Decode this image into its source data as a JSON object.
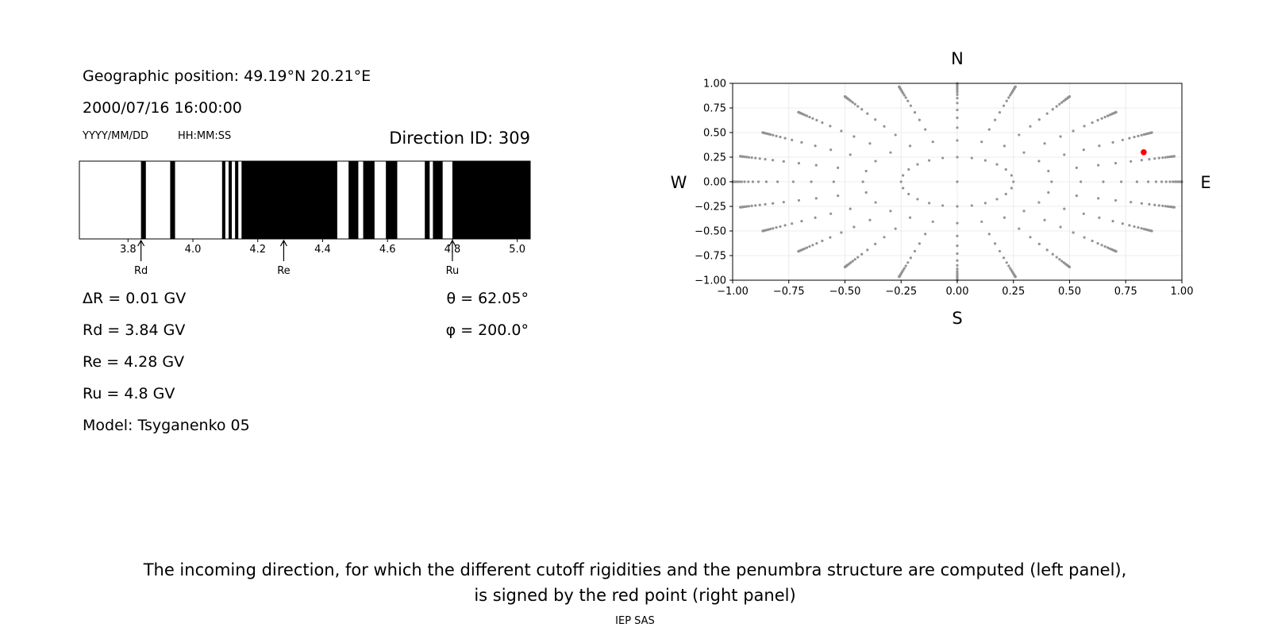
{
  "header": {
    "geo_position": "Geographic position: 49.19°N 20.21°E",
    "datetime": "2000/07/16 16:00:00",
    "date_format": "YYYY/MM/DD",
    "time_format": "HH:MM:SS",
    "direction_id": "Direction ID: 309"
  },
  "stats": {
    "delta_r": "ΔR = 0.01 GV",
    "rd": "Rd = 3.84 GV",
    "re": "Re = 4.28 GV",
    "ru": "Ru = 4.8 GV",
    "model": "Model: Tsyganenko 05",
    "theta": "θ = 62.05°",
    "phi": "φ = 200.0°"
  },
  "caption": {
    "line1": "The incoming direction, for which the different cutoff rigidities and the penumbra structure are computed (left panel),",
    "line2": "is signed by the red point (right panel)"
  },
  "footer": "IEP SAS",
  "chart_data": [
    {
      "type": "penumbra-bar",
      "xlim": [
        3.65,
        5.04
      ],
      "xticks": [
        3.8,
        4.0,
        4.2,
        4.4,
        4.6,
        4.8,
        5.0
      ],
      "xtick_labels": [
        "3.8",
        "4.0",
        "4.2",
        "4.4",
        "4.6",
        "4.8",
        "5.0"
      ],
      "forbidden_intervals": [
        [
          3.84,
          3.855
        ],
        [
          3.93,
          3.945
        ],
        [
          4.09,
          4.1
        ],
        [
          4.11,
          4.12
        ],
        [
          4.13,
          4.14
        ],
        [
          4.15,
          4.445
        ],
        [
          4.48,
          4.51
        ],
        [
          4.525,
          4.56
        ],
        [
          4.595,
          4.63
        ],
        [
          4.715,
          4.73
        ],
        [
          4.74,
          4.77
        ],
        [
          4.8,
          5.04
        ]
      ],
      "markers": [
        {
          "label": "Rd",
          "value": 3.84
        },
        {
          "label": "Re",
          "value": 4.28
        },
        {
          "label": "Ru",
          "value": 4.8
        }
      ],
      "colors": {
        "forbidden": "#000000",
        "allowed": "#ffffff"
      }
    },
    {
      "type": "scatter",
      "xlim": [
        -1.0,
        1.0
      ],
      "ylim": [
        -1.0,
        1.0
      ],
      "xticks": [
        -1.0,
        -0.75,
        -0.5,
        -0.25,
        0.0,
        0.25,
        0.5,
        0.75,
        1.0
      ],
      "yticks": [
        -1.0,
        -0.75,
        -0.5,
        -0.25,
        0.0,
        0.25,
        0.5,
        0.75,
        1.0
      ],
      "xtick_labels": [
        "−1.00",
        "−0.75",
        "−0.50",
        "−0.25",
        "0.00",
        "0.25",
        "0.50",
        "0.75",
        "1.00"
      ],
      "ytick_labels": [
        "−1.00",
        "−0.75",
        "−0.50",
        "−0.25",
        "0.00",
        "0.25",
        "0.50",
        "0.75",
        "1.00"
      ],
      "grid": true,
      "compass": {
        "north": "N",
        "south": "S",
        "west": "W",
        "east": "E"
      },
      "direction_grid": {
        "azimuth_step_deg": 15,
        "ring_radii": [
          0.0,
          0.25,
          0.42,
          0.55,
          0.65,
          0.73,
          0.8,
          0.85,
          0.885,
          0.91,
          0.93,
          0.947,
          0.96,
          0.97,
          0.978,
          0.985,
          0.99,
          0.994,
          0.997,
          0.999,
          1.0
        ],
        "color": "#939393"
      },
      "highlight": {
        "x": 0.83,
        "y": 0.3,
        "color": "#ff0000"
      }
    }
  ]
}
